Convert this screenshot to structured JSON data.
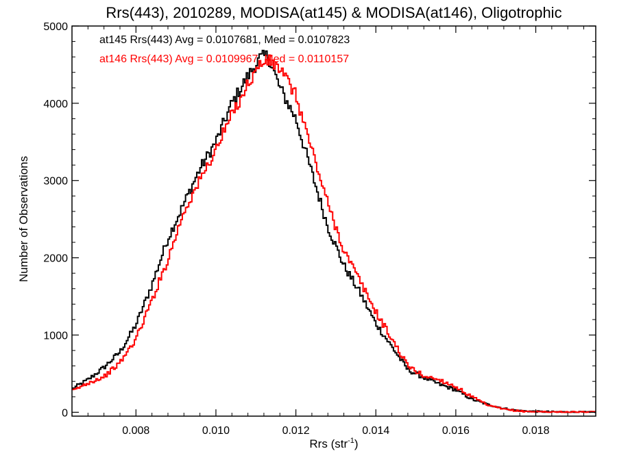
{
  "chart_data": {
    "type": "line",
    "title": "Rrs(443), 2010289, MODISA(at145) & MODISA(at146), Oligotrophic",
    "xlabel_main": "Rrs (str",
    "xlabel_exp": "-1",
    "xlabel_close": ")",
    "ylabel": "Number of Observations",
    "xlim": [
      0.0064,
      0.0195
    ],
    "ylim": [
      -50,
      5000
    ],
    "xticks": [
      0.008,
      0.01,
      0.012,
      0.014,
      0.016,
      0.018
    ],
    "xtick_labels": [
      "0.008",
      "0.010",
      "0.012",
      "0.014",
      "0.016",
      "0.018"
    ],
    "yticks": [
      0,
      1000,
      2000,
      3000,
      4000,
      5000
    ],
    "ytick_labels": [
      "0",
      "1000",
      "2000",
      "3000",
      "4000",
      "5000"
    ],
    "grid": false,
    "step": true,
    "annotations": [
      {
        "text": "at145 Rrs(443) Avg = 0.0107681, Med = 0.0107823",
        "color": "#000000"
      },
      {
        "text": "at146 Rrs(443) Avg = 0.0109967, Med = 0.0110157",
        "color": "#ff0000"
      }
    ],
    "series": [
      {
        "color": "#000000",
        "x": [
          0.0064,
          0.0068,
          0.0072,
          0.0076,
          0.008,
          0.0084,
          0.0088,
          0.0092,
          0.0096,
          0.01,
          0.0104,
          0.0108,
          0.0111,
          0.0113,
          0.0116,
          0.012,
          0.0124,
          0.0128,
          0.0132,
          0.0136,
          0.014,
          0.0144,
          0.0148,
          0.0152,
          0.0156,
          0.016,
          0.0164,
          0.0168,
          0.0172,
          0.0176,
          0.018,
          0.0184,
          0.0188,
          0.0195
        ],
        "y": [
          300,
          420,
          580,
          780,
          1130,
          1650,
          2250,
          2700,
          3150,
          3500,
          4000,
          4350,
          4580,
          4620,
          4200,
          3800,
          3100,
          2400,
          1900,
          1550,
          1150,
          850,
          550,
          450,
          360,
          290,
          170,
          100,
          50,
          20,
          10,
          5,
          2,
          0
        ]
      },
      {
        "color": "#ff0000",
        "x": [
          0.0064,
          0.0068,
          0.0072,
          0.0076,
          0.008,
          0.0084,
          0.0088,
          0.0092,
          0.0096,
          0.01,
          0.0104,
          0.0108,
          0.0111,
          0.0113,
          0.0116,
          0.012,
          0.0124,
          0.0128,
          0.0132,
          0.0136,
          0.014,
          0.0144,
          0.0148,
          0.0152,
          0.0156,
          0.016,
          0.0164,
          0.0168,
          0.0172,
          0.0176,
          0.018,
          0.0184,
          0.0188,
          0.0195
        ],
        "y": [
          270,
          380,
          460,
          640,
          950,
          1450,
          1980,
          2600,
          3000,
          3400,
          3850,
          4250,
          4500,
          4550,
          4450,
          4100,
          3400,
          2700,
          2100,
          1700,
          1300,
          950,
          600,
          470,
          420,
          330,
          200,
          90,
          40,
          15,
          8,
          4,
          2,
          0
        ]
      }
    ]
  }
}
